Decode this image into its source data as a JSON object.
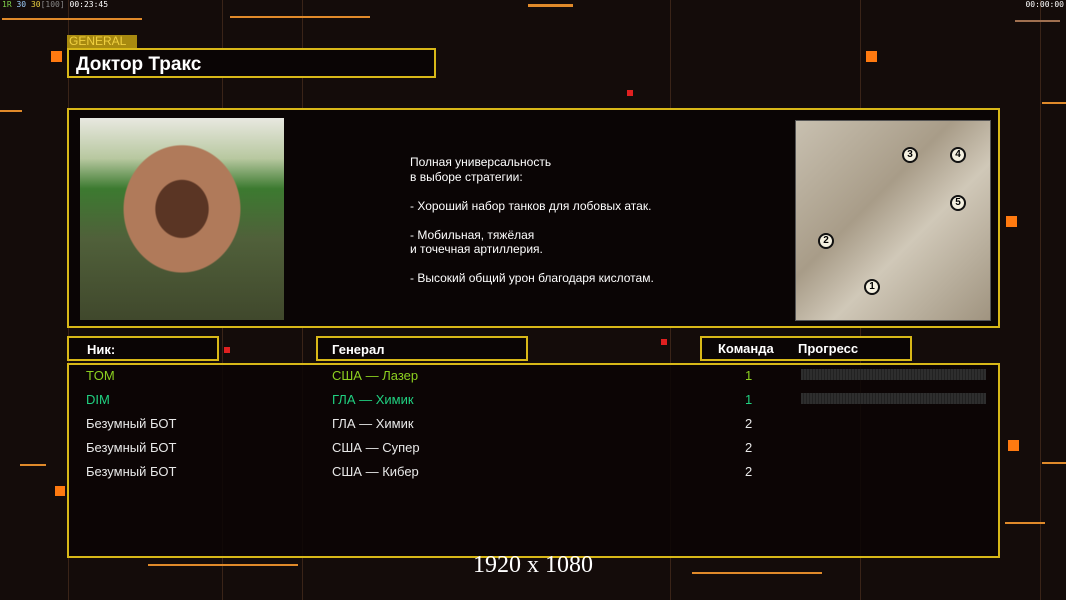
{
  "hud": {
    "left_parts": [
      {
        "text": "1R",
        "color": "#7fd04a"
      },
      {
        "text": "30",
        "color": "#9fd0ff"
      },
      {
        "text": "30",
        "color": "#e8d040"
      },
      {
        "text": "[100]",
        "color": "#888888"
      },
      {
        "text": "00:23:45",
        "color": "#ffffff"
      }
    ],
    "right_timer": "00:00:00"
  },
  "general": {
    "tag": "GENERAL",
    "name": "Доктор Тракс"
  },
  "description": [
    "Полная универсальность",
    "в выборе стратегии:",
    "",
    "- Хороший набор танков для лобовых атак.",
    "",
    "- Мобильная, тяжёлая",
    "и точечная артиллерия.",
    "",
    "- Высокий общий урон благодаря кислотам."
  ],
  "minimap": {
    "start_positions": [
      "1",
      "2",
      "3",
      "4",
      "5"
    ]
  },
  "headers": {
    "nick": "Ник:",
    "general": "Генерал",
    "team": "Команда",
    "progress": "Прогресс"
  },
  "players": [
    {
      "nick": "TOM",
      "general": "США — Лазер",
      "team": "1",
      "color": "#8cd020",
      "progress": 0
    },
    {
      "nick": "DIM",
      "general": "ГЛА — Химик",
      "team": "1",
      "color": "#20d080",
      "progress": 0
    },
    {
      "nick": "Безумный БОТ",
      "general": "ГЛА — Химик",
      "team": "2",
      "color": "#e8e8e8"
    },
    {
      "nick": "Безумный БОТ",
      "general": "США — Супер",
      "team": "2",
      "color": "#e8e8e8"
    },
    {
      "nick": "Безумный БОТ",
      "general": "США — Кибер",
      "team": "2",
      "color": "#e8e8e8"
    }
  ],
  "resolution": "1920 x 1080",
  "colors": {
    "frame": "#d8b818",
    "accent": "#ff7a10"
  }
}
